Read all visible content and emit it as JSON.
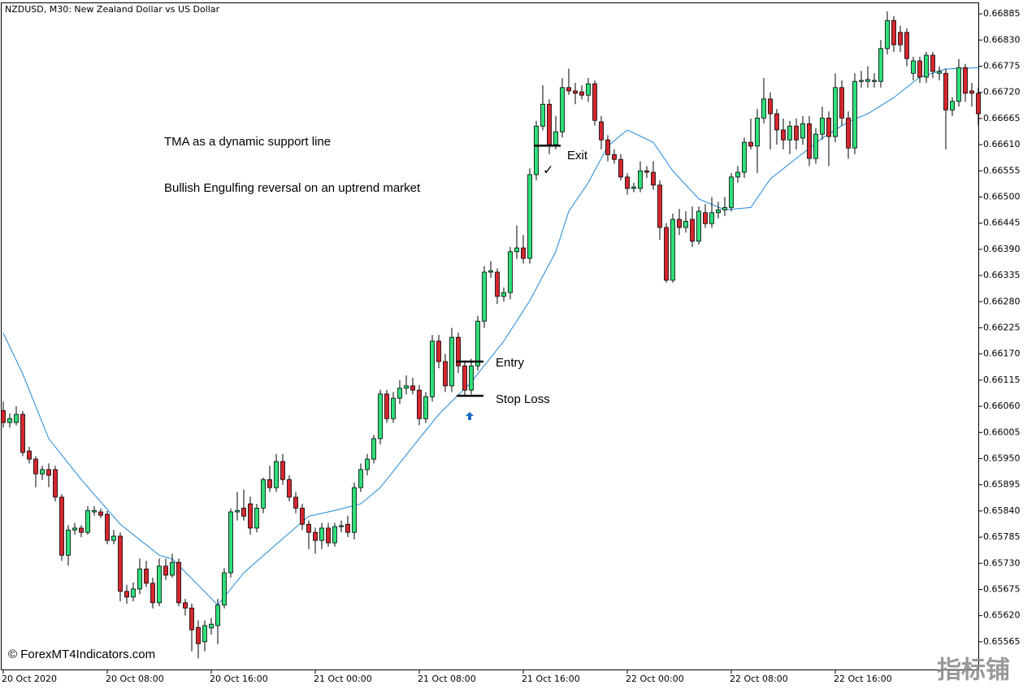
{
  "chart_data": {
    "type": "candlestick",
    "title": "NZDUSD, M30:  New Zealand Dollar vs US Dollar",
    "watermark": "© ForexMT4Indicators.com",
    "corner_watermark": "指标铺",
    "notes": [
      "TMA as a dynamic support line",
      "Bullish Engulfing reversal on an uptrend market"
    ],
    "levels": [
      {
        "label": "Entry",
        "value": 0.66154
      },
      {
        "label": "Stop Loss",
        "value": 0.66082
      },
      {
        "label": "Exit",
        "value": 0.66608
      }
    ],
    "exit_mark": "✓",
    "up_color": "#2ee07a",
    "down_color": "#d7262e",
    "ylim": [
      0.65505,
      0.66909
    ],
    "yticks": [
      0.66885,
      {
        "value": 0.6683,
        "label": "0.66830"
      },
      0.66775,
      {
        "value": 0.6672,
        "label": "0.66720"
      },
      0.66665,
      {
        "value": 0.6661,
        "label": "0.66610"
      },
      0.66555,
      {
        "value": 0.665,
        "label": "0.66500"
      },
      0.66445,
      {
        "value": 0.6639,
        "label": "0.66390"
      },
      0.66335,
      {
        "value": 0.6628,
        "label": "0.66280"
      },
      0.66225,
      {
        "value": 0.6617,
        "label": "0.66170"
      },
      0.66115,
      {
        "value": 0.6606,
        "label": "0.66060"
      },
      0.66005,
      {
        "value": 0.6595,
        "label": "0.65950"
      },
      0.65895,
      {
        "value": 0.6584,
        "label": "0.65840"
      },
      0.65785,
      {
        "value": 0.6573,
        "label": "0.65730"
      },
      0.65675,
      {
        "value": 0.6562,
        "label": "0.65620"
      },
      0.65565
    ],
    "categories": [
      "20 Oct 2020",
      null,
      null,
      null,
      null,
      null,
      null,
      null,
      null,
      null,
      null,
      null,
      null,
      null,
      null,
      null,
      "20 Oct 08:00",
      null,
      null,
      null,
      null,
      null,
      null,
      null,
      null,
      null,
      null,
      null,
      null,
      null,
      null,
      null,
      "20 Oct 16:00",
      null,
      null,
      null,
      null,
      null,
      null,
      null,
      null,
      null,
      null,
      null,
      null,
      null,
      null,
      null,
      "21 Oct 00:00",
      null,
      null,
      null,
      null,
      null,
      null,
      null,
      null,
      null,
      null,
      null,
      null,
      null,
      null,
      null,
      "21 Oct 08:00",
      null,
      null,
      null,
      null,
      null,
      null,
      null,
      null,
      null,
      null,
      null,
      null,
      null,
      null,
      null,
      "21 Oct 16:00",
      null,
      null,
      null,
      null,
      null,
      null,
      null,
      null,
      null,
      null,
      null,
      null,
      null,
      null,
      null,
      "22 Oct 00:00",
      null,
      null,
      null,
      null,
      null,
      null,
      null,
      null,
      null,
      null,
      null,
      null,
      null,
      null,
      null,
      "22 Oct 08:00",
      null,
      null,
      null,
      null,
      null,
      null,
      null,
      null,
      null,
      null,
      null,
      null,
      null,
      null,
      null,
      "22 Oct 16:00",
      null,
      null,
      null,
      null,
      null,
      null,
      null,
      null,
      null,
      null,
      null,
      null,
      null,
      null,
      null,
      null,
      null,
      null,
      null,
      null,
      null,
      null
    ],
    "ohlc": [
      [
        0.66051,
        0.6607,
        0.66015,
        0.66026
      ],
      [
        0.66026,
        0.66045,
        0.66015,
        0.66034
      ],
      [
        0.66026,
        0.6606,
        0.6602,
        0.66043
      ],
      [
        0.66043,
        0.6605,
        0.65955,
        0.65963
      ],
      [
        0.65966,
        0.65975,
        0.6594,
        0.65949
      ],
      [
        0.65949,
        0.65955,
        0.6589,
        0.65918
      ],
      [
        0.65918,
        0.65935,
        0.65905,
        0.65927
      ],
      [
        0.65927,
        0.6594,
        0.6589,
        0.65915
      ],
      [
        0.65927,
        0.65935,
        0.6586,
        0.65869
      ],
      [
        0.65869,
        0.65875,
        0.65735,
        0.65747
      ],
      [
        0.65747,
        0.6581,
        0.65725,
        0.658
      ],
      [
        0.658,
        0.65815,
        0.6579,
        0.65804
      ],
      [
        0.65804,
        0.6581,
        0.65785,
        0.65795
      ],
      [
        0.65795,
        0.6585,
        0.6579,
        0.65841
      ],
      [
        0.65838,
        0.6585,
        0.6583,
        0.65841
      ],
      [
        0.65838,
        0.65845,
        0.65825,
        0.65831
      ],
      [
        0.65833,
        0.6584,
        0.6577,
        0.65778
      ],
      [
        0.65778,
        0.658,
        0.6577,
        0.65787
      ],
      [
        0.65787,
        0.65795,
        0.6565,
        0.65671
      ],
      [
        0.65671,
        0.65685,
        0.65645,
        0.65659
      ],
      [
        0.65659,
        0.6569,
        0.6565,
        0.65676
      ],
      [
        0.65676,
        0.6574,
        0.65665,
        0.65718
      ],
      [
        0.65718,
        0.65735,
        0.6568,
        0.65688
      ],
      [
        0.65688,
        0.657,
        0.65635,
        0.65647
      ],
      [
        0.65647,
        0.6574,
        0.6564,
        0.65724
      ],
      [
        0.65724,
        0.6574,
        0.65695,
        0.65705
      ],
      [
        0.65705,
        0.6575,
        0.657,
        0.65732
      ],
      [
        0.65732,
        0.6574,
        0.6564,
        0.65647
      ],
      [
        0.65647,
        0.65655,
        0.6562,
        0.65636
      ],
      [
        0.65636,
        0.65645,
        0.65545,
        0.6559
      ],
      [
        0.65595,
        0.6561,
        0.6553,
        0.65561
      ],
      [
        0.65565,
        0.6561,
        0.65545,
        0.65599
      ],
      [
        0.65594,
        0.65615,
        0.6558,
        0.65602
      ],
      [
        0.65599,
        0.65655,
        0.6556,
        0.65642
      ],
      [
        0.65642,
        0.6572,
        0.65635,
        0.6571
      ],
      [
        0.6571,
        0.65845,
        0.657,
        0.65838
      ],
      [
        0.65838,
        0.6588,
        0.6582,
        0.65841
      ],
      [
        0.65846,
        0.65885,
        0.6582,
        0.65829
      ],
      [
        0.65855,
        0.6587,
        0.6579,
        0.65804
      ],
      [
        0.65804,
        0.65855,
        0.65795,
        0.65846
      ],
      [
        0.65846,
        0.6591,
        0.65835,
        0.65906
      ],
      [
        0.65906,
        0.65935,
        0.6588,
        0.65889
      ],
      [
        0.65889,
        0.6596,
        0.6588,
        0.65944
      ],
      [
        0.65944,
        0.6596,
        0.65895,
        0.65906
      ],
      [
        0.65906,
        0.65915,
        0.6586,
        0.65869
      ],
      [
        0.65869,
        0.6588,
        0.65835,
        0.65846
      ],
      [
        0.65846,
        0.65855,
        0.658,
        0.65812
      ],
      [
        0.65812,
        0.6582,
        0.6576,
        0.65795
      ],
      [
        0.65795,
        0.65805,
        0.6575,
        0.65778
      ],
      [
        0.65778,
        0.65815,
        0.6576,
        0.65804
      ],
      [
        0.65804,
        0.65815,
        0.65765,
        0.65773
      ],
      [
        0.65773,
        0.65815,
        0.65765,
        0.65807
      ],
      [
        0.65807,
        0.6582,
        0.65795,
        0.65809
      ],
      [
        0.65812,
        0.6583,
        0.65785,
        0.65795
      ],
      [
        0.65795,
        0.659,
        0.6578,
        0.65889
      ],
      [
        0.65889,
        0.6594,
        0.6588,
        0.65927
      ],
      [
        0.65927,
        0.6596,
        0.65915,
        0.65949
      ],
      [
        0.65949,
        0.66,
        0.6594,
        0.65992
      ],
      [
        0.65992,
        0.66095,
        0.6598,
        0.66086
      ],
      [
        0.66086,
        0.66095,
        0.66025,
        0.66034
      ],
      [
        0.66034,
        0.6609,
        0.66025,
        0.66077
      ],
      [
        0.66077,
        0.66115,
        0.66065,
        0.66098
      ],
      [
        0.66098,
        0.66125,
        0.66085,
        0.66103
      ],
      [
        0.66103,
        0.6612,
        0.66085,
        0.66094
      ],
      [
        0.66094,
        0.66105,
        0.6602,
        0.66034
      ],
      [
        0.66034,
        0.6609,
        0.66025,
        0.6608
      ],
      [
        0.6608,
        0.6621,
        0.6607,
        0.66197
      ],
      [
        0.66197,
        0.6621,
        0.6614,
        0.66154
      ],
      [
        0.66154,
        0.6617,
        0.6609,
        0.66103
      ],
      [
        0.66103,
        0.66225,
        0.6609,
        0.66205
      ],
      [
        0.66205,
        0.66215,
        0.6613,
        0.66145
      ],
      [
        0.66145,
        0.66155,
        0.6608,
        0.66094
      ],
      [
        0.66094,
        0.6616,
        0.66085,
        0.66145
      ],
      [
        0.66145,
        0.6625,
        0.66135,
        0.66239
      ],
      [
        0.66239,
        0.66355,
        0.66225,
        0.66342
      ],
      [
        0.66342,
        0.66365,
        0.6633,
        0.66345
      ],
      [
        0.66342,
        0.6635,
        0.66275,
        0.66291
      ],
      [
        0.66291,
        0.6631,
        0.6628,
        0.66299
      ],
      [
        0.66299,
        0.66395,
        0.66285,
        0.66385
      ],
      [
        0.66385,
        0.6644,
        0.6637,
        0.66393
      ],
      [
        0.66393,
        0.6642,
        0.6636,
        0.66371
      ],
      [
        0.66371,
        0.6656,
        0.6636,
        0.66547
      ],
      [
        0.66547,
        0.6666,
        0.66535,
        0.66649
      ],
      [
        0.66649,
        0.66735,
        0.6664,
        0.66695
      ],
      [
        0.66695,
        0.66705,
        0.6659,
        0.6661
      ],
      [
        0.6661,
        0.6667,
        0.666,
        0.66637
      ],
      [
        0.66637,
        0.6675,
        0.66625,
        0.6673
      ],
      [
        0.6673,
        0.6677,
        0.66715,
        0.66723
      ],
      [
        0.66723,
        0.6674,
        0.66695,
        0.66718
      ],
      [
        0.66721,
        0.66735,
        0.66705,
        0.66714
      ],
      [
        0.66714,
        0.6675,
        0.667,
        0.66738
      ],
      [
        0.66738,
        0.66745,
        0.6665,
        0.66661
      ],
      [
        0.66658,
        0.6667,
        0.666,
        0.6662
      ],
      [
        0.6662,
        0.6663,
        0.66575,
        0.66589
      ],
      [
        0.66589,
        0.666,
        0.6657,
        0.66579
      ],
      [
        0.66579,
        0.6659,
        0.66535,
        0.66542
      ],
      [
        0.66542,
        0.6655,
        0.66505,
        0.66518
      ],
      [
        0.66518,
        0.6653,
        0.6651,
        0.66521
      ],
      [
        0.66518,
        0.66575,
        0.6651,
        0.66555
      ],
      [
        0.66555,
        0.66565,
        0.6654,
        0.66552
      ],
      [
        0.66552,
        0.66575,
        0.66515,
        0.66525
      ],
      [
        0.66525,
        0.66535,
        0.6641,
        0.66436
      ],
      [
        0.66436,
        0.66445,
        0.6632,
        0.66325
      ],
      [
        0.66325,
        0.66465,
        0.6632,
        0.66453
      ],
      [
        0.66453,
        0.66475,
        0.6642,
        0.66436
      ],
      [
        0.66436,
        0.6647,
        0.66425,
        0.66449
      ],
      [
        0.66453,
        0.6648,
        0.66395,
        0.66407
      ],
      [
        0.66407,
        0.6648,
        0.664,
        0.6647
      ],
      [
        0.66467,
        0.66485,
        0.66435,
        0.66444
      ],
      [
        0.66444,
        0.665,
        0.66435,
        0.66467
      ],
      [
        0.66467,
        0.6649,
        0.66455,
        0.66473
      ],
      [
        0.66473,
        0.665,
        0.6646,
        0.66478
      ],
      [
        0.66478,
        0.6655,
        0.6647,
        0.66542
      ],
      [
        0.66542,
        0.66565,
        0.6653,
        0.66552
      ],
      [
        0.66552,
        0.66625,
        0.6654,
        0.66615
      ],
      [
        0.66615,
        0.66665,
        0.666,
        0.66607
      ],
      [
        0.66607,
        0.66685,
        0.6655,
        0.66666
      ],
      [
        0.66666,
        0.6675,
        0.66655,
        0.66706
      ],
      [
        0.66706,
        0.6672,
        0.666,
        0.66675
      ],
      [
        0.66675,
        0.66685,
        0.6661,
        0.66641
      ],
      [
        0.66641,
        0.66665,
        0.666,
        0.6662
      ],
      [
        0.6662,
        0.6666,
        0.6659,
        0.66649
      ],
      [
        0.66649,
        0.66665,
        0.666,
        0.6662
      ],
      [
        0.66624,
        0.6667,
        0.6661,
        0.66654
      ],
      [
        0.66654,
        0.6667,
        0.66565,
        0.66581
      ],
      [
        0.66581,
        0.66645,
        0.6657,
        0.66632
      ],
      [
        0.66632,
        0.6669,
        0.6662,
        0.66666
      ],
      [
        0.66666,
        0.6668,
        0.66565,
        0.66627
      ],
      [
        0.66627,
        0.6676,
        0.66615,
        0.6673
      ],
      [
        0.6673,
        0.66745,
        0.6665,
        0.66666
      ],
      [
        0.66666,
        0.6668,
        0.6658,
        0.66603
      ],
      [
        0.66603,
        0.6676,
        0.6659,
        0.66743
      ],
      [
        0.66743,
        0.66765,
        0.6673,
        0.66745
      ],
      [
        0.66743,
        0.66775,
        0.6673,
        0.66747
      ],
      [
        0.66743,
        0.6676,
        0.6673,
        0.66745
      ],
      [
        0.66743,
        0.6683,
        0.6673,
        0.66812
      ],
      [
        0.66812,
        0.6689,
        0.668,
        0.66871
      ],
      [
        0.66871,
        0.6688,
        0.66805,
        0.6682
      ],
      [
        0.66846,
        0.6686,
        0.66805,
        0.6682
      ],
      [
        0.66846,
        0.66855,
        0.66775,
        0.66791
      ],
      [
        0.6676,
        0.66795,
        0.66745,
        0.66786
      ],
      [
        0.66786,
        0.66795,
        0.6674,
        0.66752
      ],
      [
        0.66752,
        0.66805,
        0.6674,
        0.66798
      ],
      [
        0.66798,
        0.66805,
        0.6675,
        0.66764
      ],
      [
        0.6676,
        0.66775,
        0.66745,
        0.66764
      ],
      [
        0.6676,
        0.6677,
        0.666,
        0.66683
      ],
      [
        0.66683,
        0.6671,
        0.6667,
        0.66701
      ],
      [
        0.66701,
        0.6679,
        0.6669,
        0.66772
      ],
      [
        0.66772,
        0.6678,
        0.667,
        0.66718
      ],
      [
        0.66723,
        0.6674,
        0.6669,
        0.66718
      ],
      [
        0.66718,
        0.6673,
        0.6665,
        0.66675
      ]
    ],
    "tma": {
      "color": "#1e88d8",
      "x": [
        0,
        3,
        7,
        12,
        18,
        24,
        26,
        30,
        33,
        37,
        42,
        47,
        51,
        55,
        58,
        62,
        67,
        72,
        77,
        81,
        85,
        87,
        90,
        93,
        96,
        100,
        103,
        107,
        111,
        115,
        118,
        122,
        126,
        130,
        133,
        137,
        141,
        145,
        150
      ],
      "values": [
        0.66214,
        0.66128,
        0.65992,
        0.65906,
        0.65812,
        0.65747,
        0.65739,
        0.65684,
        0.65642,
        0.6571,
        0.6577,
        0.65829,
        0.65841,
        0.65855,
        0.65889,
        0.65958,
        0.66043,
        0.66111,
        0.66197,
        0.66282,
        0.66385,
        0.6647,
        0.6653,
        0.66607,
        0.66641,
        0.66615,
        0.66555,
        0.66496,
        0.66473,
        0.66478,
        0.66538,
        0.66581,
        0.66624,
        0.66658,
        0.66675,
        0.66709,
        0.66752,
        0.66769,
        0.66772
      ]
    }
  }
}
